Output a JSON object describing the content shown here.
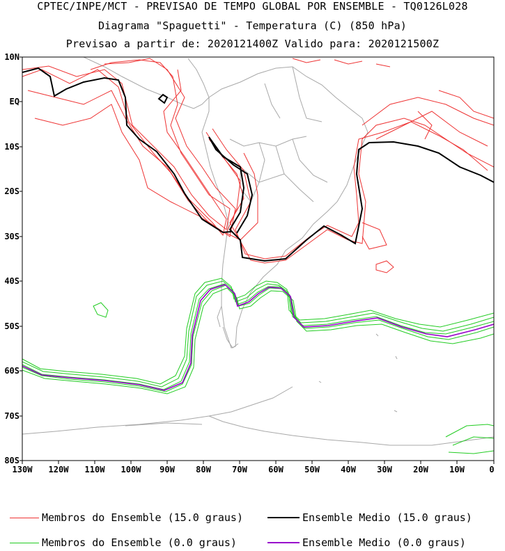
{
  "title": {
    "line1": "CPTEC/INPE/MCT - PREVISAO DE TEMPO GLOBAL POR ENSEMBLE - TQ0126L028",
    "line2": "Diagrama \"Spaguetti\" - Temperatura (C) (850 hPa)",
    "line3": "Previsao a partir de: 2020121400Z  Valido para: 2020121500Z"
  },
  "axes": {
    "lat_labels": [
      "10N",
      "EQ",
      "10S",
      "20S",
      "30S",
      "40S",
      "50S",
      "60S",
      "70S",
      "80S"
    ],
    "lon_labels": [
      "130W",
      "120W",
      "110W",
      "100W",
      "90W",
      "80W",
      "70W",
      "60W",
      "50W",
      "40W",
      "30W",
      "20W",
      "10W",
      "0"
    ]
  },
  "legend": {
    "red_members": "Membros do Ensemble (15.0 graus)",
    "black_mean": "Ensemble Medio (15.0 graus)",
    "green_members": "Membros do Ensemble (0.0 graus)",
    "purple_mean": "Ensemble Medio (0.0 graus)"
  },
  "colors": {
    "red_members": "#ee3333",
    "black_mean": "#000000",
    "green_members": "#22cc22",
    "purple_mean": "#9900cc",
    "coast": "#a8a8a8"
  }
}
